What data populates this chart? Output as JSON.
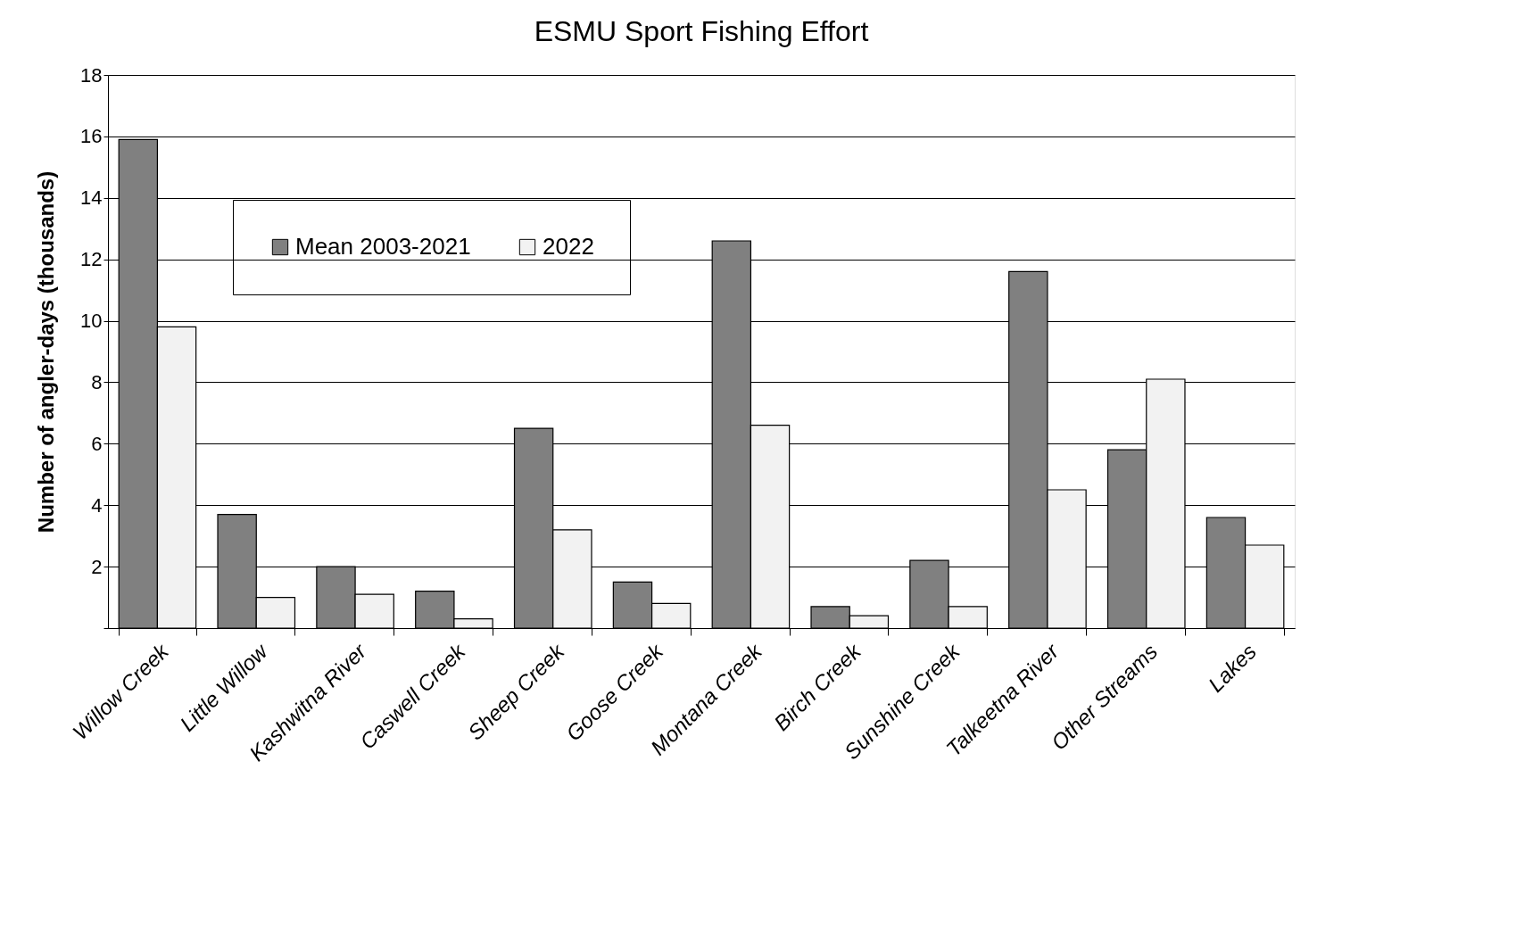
{
  "chart_data": {
    "type": "bar",
    "title": "ESMU Sport Fishing Effort",
    "ylabel": "Number of angler-days (thousands)",
    "categories": [
      "Willow Creek",
      "Little Willow",
      "Kashwitna River",
      "Caswell Creek",
      "Sheep Creek",
      "Goose Creek",
      "Montana Creek",
      "Birch Creek",
      "Sunshine Creek",
      "Talkeetna River",
      "Other Streams",
      "Lakes"
    ],
    "series": [
      {
        "name": "Mean 2003-2021",
        "color": "#808080",
        "values": [
          15.9,
          3.7,
          2.0,
          1.2,
          6.5,
          1.5,
          12.6,
          0.7,
          2.2,
          11.6,
          5.8,
          3.6
        ]
      },
      {
        "name": "2022",
        "color": "#f2f2f2",
        "values": [
          9.8,
          1.0,
          1.1,
          0.3,
          3.2,
          0.8,
          6.6,
          0.4,
          0.7,
          4.5,
          8.1,
          2.7
        ]
      }
    ],
    "ylim": [
      0,
      18
    ],
    "yticks": [
      {
        "value": 0,
        "label": null
      },
      2,
      4,
      6,
      8,
      10,
      12,
      14,
      16,
      18
    ],
    "grid": "y",
    "legend": "top left"
  }
}
